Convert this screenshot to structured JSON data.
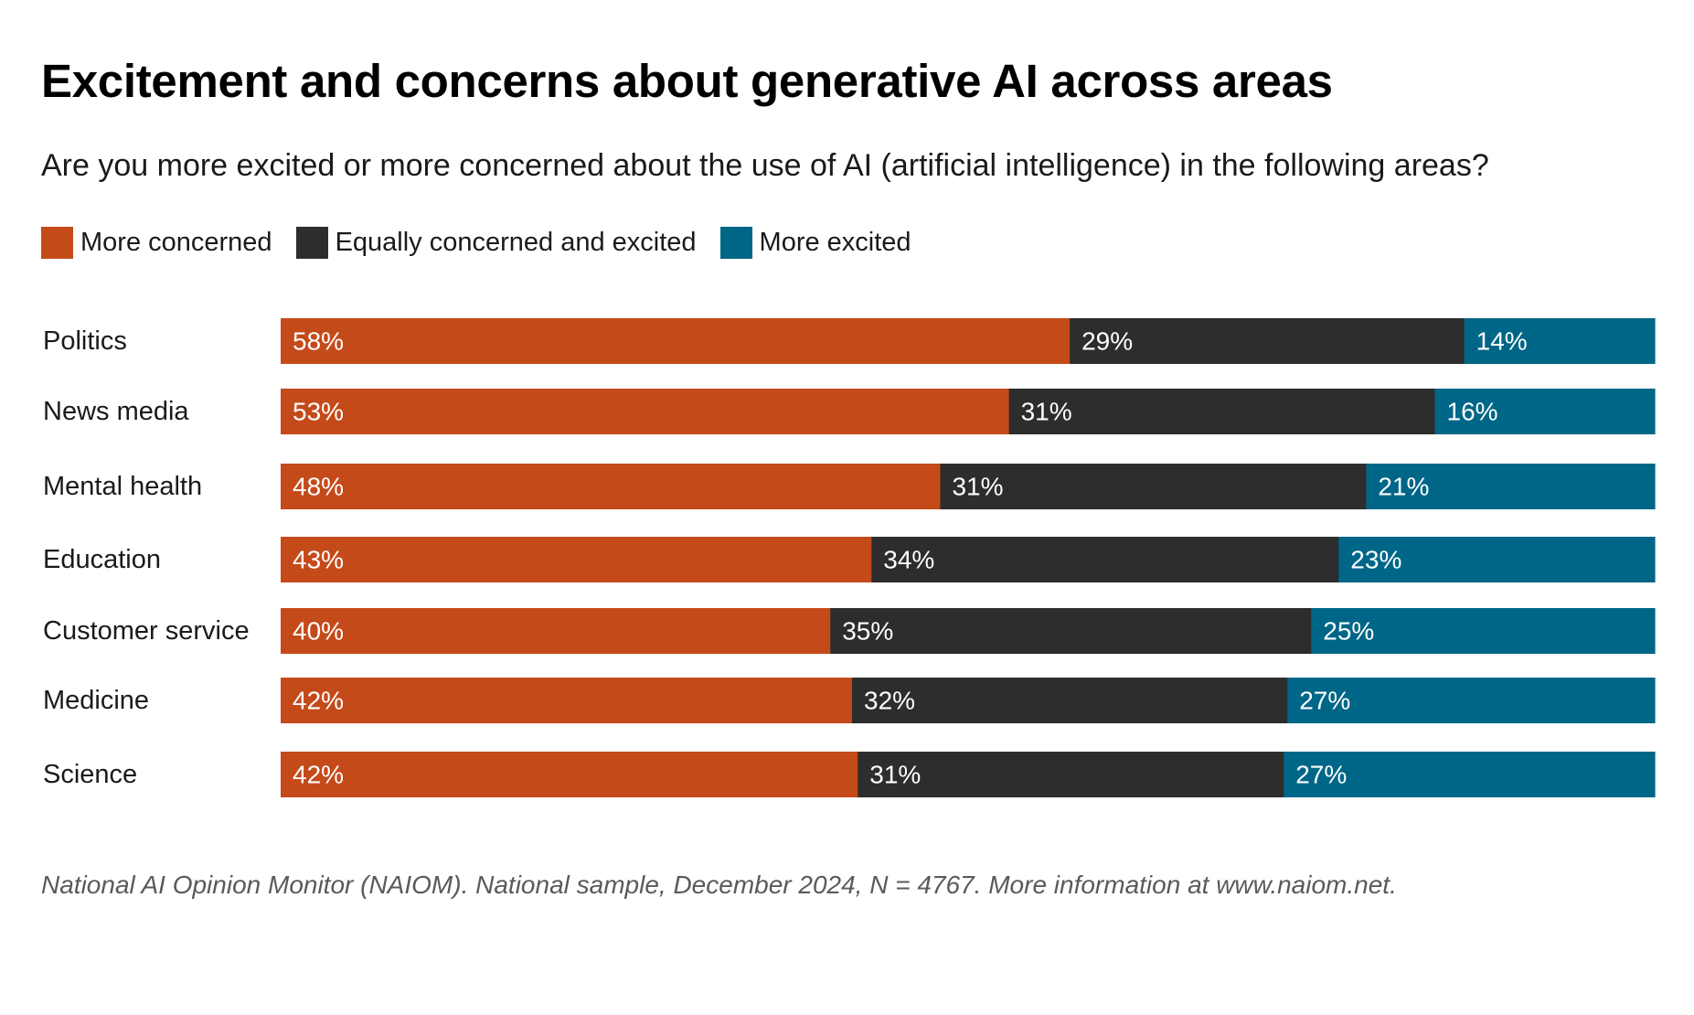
{
  "title": "Excitement and concerns about generative AI across areas",
  "subtitle": "Are you more excited or more concerned about the use of AI (artificial intelligence) in the following areas?",
  "source": "National AI Opinion Monitor (NAIOM). National sample, December 2024, N = 4767. More information at www.naiom.net.",
  "legend": [
    {
      "label": "More concerned",
      "color": "#c44a1a"
    },
    {
      "label": "Equally concerned and excited",
      "color": "#2d2d2d"
    },
    {
      "label": "More excited",
      "color": "#006688"
    }
  ],
  "chart_data": {
    "type": "bar",
    "orientation": "horizontal",
    "stacked": true,
    "categories": [
      "Politics",
      "News media",
      "Mental health",
      "Education",
      "Customer service",
      "Medicine",
      "Science"
    ],
    "series": [
      {
        "name": "More concerned",
        "color": "#c44a1a",
        "values": [
          58,
          53,
          48,
          43,
          40,
          42,
          42
        ],
        "labels": [
          "58%",
          "53%",
          "48%",
          "43%",
          "40%",
          "42%",
          "42%"
        ]
      },
      {
        "name": "Equally concerned and excited",
        "color": "#2d2d2d",
        "values": [
          29,
          31,
          31,
          34,
          35,
          32,
          31
        ],
        "labels": [
          "29%",
          "31%",
          "31%",
          "34%",
          "35%",
          "32%",
          "31%"
        ]
      },
      {
        "name": "More excited",
        "color": "#006688",
        "values": [
          14,
          16,
          21,
          23,
          25,
          27,
          27
        ],
        "labels": [
          "14%",
          "16%",
          "21%",
          "23%",
          "25%",
          "27%",
          "27%"
        ]
      }
    ],
    "value_unit": "%",
    "legend_position": "top-left",
    "grid": false,
    "axes_visible": false
  }
}
